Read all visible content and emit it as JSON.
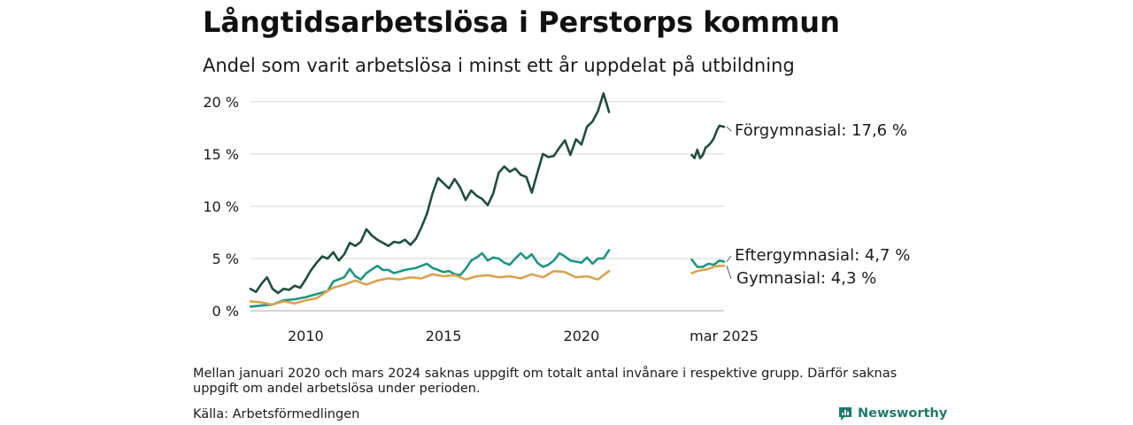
{
  "title": "Långtidsarbetslösa i Perstorps kommun",
  "subtitle": "Andel som varit arbetslösa i minst ett år uppdelat på utbildning",
  "note": "Mellan januari 2020 och mars 2024 saknas uppgift om totalt antal invånare i respektive grupp. Därför saknas uppgift om andel arbetslösa under perioden.",
  "source": "Källa: Arbetsförmedlingen",
  "brand": {
    "name": "Newsworthy",
    "icon": "bar-chart-logo-icon",
    "color": "#1f7a6e"
  },
  "chart_data": {
    "type": "line",
    "y_unit": "%",
    "ylim": [
      0,
      21
    ],
    "y_ticks": [
      0,
      5,
      10,
      15,
      20
    ],
    "y_tick_labels": [
      "0 %",
      "5 %",
      "10 %",
      "15 %",
      "20 %"
    ],
    "x_ticks": [
      2010,
      2015,
      2020,
      2025.17
    ],
    "x_tick_labels": [
      "2010",
      "2015",
      "2020",
      "mar 2025"
    ],
    "xlim": [
      2008.0,
      2025.2
    ],
    "grid": true,
    "legend": "end-labels",
    "series": [
      {
        "name": "Förgymnasial",
        "end_label": "Förgymnasial: 17,6 %",
        "color": "#1e4d40",
        "segments": [
          [
            [
              2008.0,
              2.1
            ],
            [
              2008.2,
              1.8
            ],
            [
              2008.4,
              2.6
            ],
            [
              2008.6,
              3.2
            ],
            [
              2008.8,
              2.1
            ],
            [
              2009.0,
              1.7
            ],
            [
              2009.2,
              2.1
            ],
            [
              2009.4,
              2.0
            ],
            [
              2009.6,
              2.4
            ],
            [
              2009.8,
              2.2
            ],
            [
              2010.0,
              3.0
            ],
            [
              2010.2,
              3.9
            ],
            [
              2010.4,
              4.6
            ],
            [
              2010.6,
              5.2
            ],
            [
              2010.8,
              5.0
            ],
            [
              2011.0,
              5.6
            ],
            [
              2011.2,
              4.8
            ],
            [
              2011.4,
              5.4
            ],
            [
              2011.6,
              6.5
            ],
            [
              2011.8,
              6.2
            ],
            [
              2012.0,
              6.6
            ],
            [
              2012.2,
              7.8
            ],
            [
              2012.4,
              7.2
            ],
            [
              2012.6,
              6.8
            ],
            [
              2012.8,
              6.5
            ],
            [
              2013.0,
              6.2
            ],
            [
              2013.2,
              6.6
            ],
            [
              2013.4,
              6.5
            ],
            [
              2013.6,
              6.8
            ],
            [
              2013.8,
              6.3
            ],
            [
              2014.0,
              6.9
            ],
            [
              2014.2,
              8.0
            ],
            [
              2014.4,
              9.3
            ],
            [
              2014.6,
              11.2
            ],
            [
              2014.8,
              12.7
            ],
            [
              2015.0,
              12.2
            ],
            [
              2015.2,
              11.7
            ],
            [
              2015.4,
              12.6
            ],
            [
              2015.6,
              11.8
            ],
            [
              2015.8,
              10.6
            ],
            [
              2016.0,
              11.5
            ],
            [
              2016.2,
              11.0
            ],
            [
              2016.4,
              10.7
            ],
            [
              2016.6,
              10.1
            ],
            [
              2016.8,
              11.2
            ],
            [
              2017.0,
              13.2
            ],
            [
              2017.2,
              13.8
            ],
            [
              2017.4,
              13.3
            ],
            [
              2017.6,
              13.6
            ],
            [
              2017.8,
              13.0
            ],
            [
              2018.0,
              12.8
            ],
            [
              2018.2,
              11.3
            ],
            [
              2018.4,
              13.2
            ],
            [
              2018.6,
              15.0
            ],
            [
              2018.8,
              14.7
            ],
            [
              2019.0,
              14.8
            ],
            [
              2019.2,
              15.6
            ],
            [
              2019.4,
              16.3
            ],
            [
              2019.6,
              14.9
            ],
            [
              2019.8,
              16.4
            ],
            [
              2020.0,
              15.9
            ],
            [
              2020.2,
              17.6
            ],
            [
              2020.4,
              18.1
            ],
            [
              2020.6,
              19.1
            ],
            [
              2020.8,
              20.8
            ],
            [
              2021.0,
              19.0
            ]
          ],
          [
            [
              2024.0,
              14.9
            ],
            [
              2024.1,
              14.6
            ],
            [
              2024.2,
              15.4
            ],
            [
              2024.3,
              14.6
            ],
            [
              2024.4,
              14.9
            ],
            [
              2024.5,
              15.6
            ],
            [
              2024.6,
              15.8
            ],
            [
              2024.7,
              16.1
            ],
            [
              2024.8,
              16.5
            ],
            [
              2024.9,
              17.2
            ],
            [
              2025.0,
              17.7
            ],
            [
              2025.17,
              17.6
            ]
          ]
        ]
      },
      {
        "name": "Eftergymnasial",
        "end_label": "Eftergymnasial:  4,7 %",
        "color": "#1f9482",
        "segments": [
          [
            [
              2008.0,
              0.4
            ],
            [
              2008.4,
              0.5
            ],
            [
              2008.8,
              0.6
            ],
            [
              2009.2,
              1.0
            ],
            [
              2009.6,
              1.1
            ],
            [
              2010.0,
              1.3
            ],
            [
              2010.4,
              1.6
            ],
            [
              2010.8,
              1.9
            ],
            [
              2011.0,
              2.8
            ],
            [
              2011.4,
              3.2
            ],
            [
              2011.6,
              4.0
            ],
            [
              2011.8,
              3.3
            ],
            [
              2012.0,
              3.0
            ],
            [
              2012.2,
              3.6
            ],
            [
              2012.6,
              4.3
            ],
            [
              2012.8,
              3.9
            ],
            [
              2013.0,
              3.9
            ],
            [
              2013.2,
              3.6
            ],
            [
              2013.6,
              3.9
            ],
            [
              2014.0,
              4.1
            ],
            [
              2014.2,
              4.3
            ],
            [
              2014.4,
              4.5
            ],
            [
              2014.6,
              4.1
            ],
            [
              2014.8,
              3.9
            ],
            [
              2015.0,
              3.7
            ],
            [
              2015.2,
              3.8
            ],
            [
              2015.4,
              3.5
            ],
            [
              2015.6,
              3.4
            ],
            [
              2015.8,
              4.0
            ],
            [
              2016.0,
              4.8
            ],
            [
              2016.2,
              5.1
            ],
            [
              2016.4,
              5.5
            ],
            [
              2016.6,
              4.8
            ],
            [
              2016.8,
              5.1
            ],
            [
              2017.0,
              5.0
            ],
            [
              2017.2,
              4.6
            ],
            [
              2017.4,
              4.4
            ],
            [
              2017.6,
              5.0
            ],
            [
              2017.8,
              5.5
            ],
            [
              2018.0,
              5.0
            ],
            [
              2018.2,
              5.4
            ],
            [
              2018.4,
              4.6
            ],
            [
              2018.6,
              4.2
            ],
            [
              2018.8,
              4.4
            ],
            [
              2019.0,
              4.8
            ],
            [
              2019.2,
              5.5
            ],
            [
              2019.4,
              5.2
            ],
            [
              2019.6,
              4.8
            ],
            [
              2019.8,
              4.7
            ],
            [
              2020.0,
              4.6
            ],
            [
              2020.2,
              5.1
            ],
            [
              2020.4,
              4.5
            ],
            [
              2020.6,
              5.0
            ],
            [
              2020.8,
              5.0
            ],
            [
              2021.0,
              5.8
            ]
          ],
          [
            [
              2024.0,
              4.9
            ],
            [
              2024.2,
              4.2
            ],
            [
              2024.4,
              4.2
            ],
            [
              2024.6,
              4.5
            ],
            [
              2024.8,
              4.4
            ],
            [
              2025.0,
              4.8
            ],
            [
              2025.17,
              4.7
            ]
          ]
        ]
      },
      {
        "name": "Gymnasial",
        "end_label": "Gymnasial:  4,3 %",
        "color": "#d9a351",
        "segments": [
          [
            [
              2008.0,
              0.9
            ],
            [
              2008.4,
              0.8
            ],
            [
              2008.8,
              0.6
            ],
            [
              2009.2,
              0.9
            ],
            [
              2009.6,
              0.7
            ],
            [
              2010.0,
              1.0
            ],
            [
              2010.4,
              1.2
            ],
            [
              2010.8,
              1.9
            ],
            [
              2011.0,
              2.2
            ],
            [
              2011.4,
              2.5
            ],
            [
              2011.8,
              2.9
            ],
            [
              2012.2,
              2.5
            ],
            [
              2012.6,
              2.9
            ],
            [
              2013.0,
              3.1
            ],
            [
              2013.4,
              3.0
            ],
            [
              2013.8,
              3.2
            ],
            [
              2014.2,
              3.1
            ],
            [
              2014.6,
              3.5
            ],
            [
              2015.0,
              3.3
            ],
            [
              2015.4,
              3.4
            ],
            [
              2015.8,
              3.0
            ],
            [
              2016.2,
              3.3
            ],
            [
              2016.6,
              3.4
            ],
            [
              2017.0,
              3.2
            ],
            [
              2017.4,
              3.3
            ],
            [
              2017.8,
              3.1
            ],
            [
              2018.2,
              3.5
            ],
            [
              2018.6,
              3.2
            ],
            [
              2019.0,
              3.8
            ],
            [
              2019.4,
              3.7
            ],
            [
              2019.8,
              3.2
            ],
            [
              2020.2,
              3.3
            ],
            [
              2020.6,
              3.0
            ],
            [
              2020.8,
              3.4
            ],
            [
              2021.0,
              3.8
            ]
          ],
          [
            [
              2024.0,
              3.6
            ],
            [
              2024.2,
              3.8
            ],
            [
              2024.4,
              3.9
            ],
            [
              2024.6,
              4.0
            ],
            [
              2024.8,
              4.2
            ],
            [
              2025.0,
              4.3
            ],
            [
              2025.17,
              4.3
            ]
          ]
        ]
      }
    ]
  }
}
